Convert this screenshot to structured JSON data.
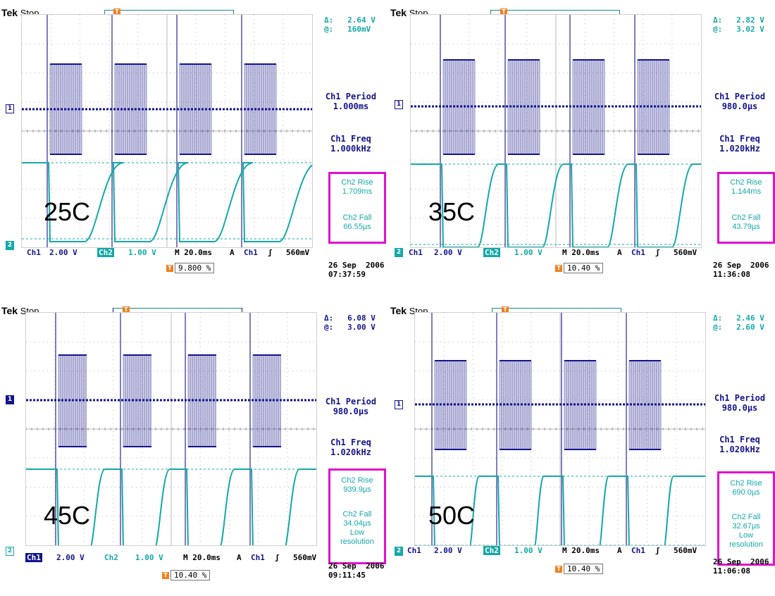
{
  "brand": "Tek",
  "acq_state": "Stop",
  "trigger_marker": "T",
  "colors": {
    "ch1": "#14148c",
    "ch2": "#15a8a8",
    "highlight": "#e010d0",
    "trigger": "#f08020"
  },
  "panels": [
    {
      "temp_label": "25C",
      "cursor_delta_label": "Δ:",
      "cursor_delta": "2.64 V",
      "cursor_at_label": "@:",
      "cursor_at": "160mV",
      "ch1_period_label": "Ch1 Period",
      "ch1_period": "1.000ms",
      "ch1_freq_label": "Ch1 Freq",
      "ch1_freq": "1.000kHz",
      "ch2_rise_label": "Ch2 Rise",
      "ch2_rise": "1.709ms",
      "ch2_fall_label": "Ch2 Fall",
      "ch2_fall": "66.55µs",
      "ch2_note_1": "",
      "ch2_note_2": "",
      "ch1_label": "Ch1",
      "ch1_scale": "2.00 V",
      "ch2_label": "Ch2",
      "ch2_scale": "1.00 V",
      "timebase": "M 20.0ms",
      "trig_mode": "A",
      "trig_src": "Ch1",
      "trig_slope": "ʃ",
      "trig_level": "560mV",
      "trig_pos": "9.800 %",
      "date": "26 Sep  2006",
      "time": "07:37:59",
      "ch1_marker": "1",
      "ch2_marker": "2"
    },
    {
      "temp_label": "35C",
      "cursor_delta_label": "Δ:",
      "cursor_delta": "2.82 V",
      "cursor_at_label": "@:",
      "cursor_at": "3.02 V",
      "ch1_period_label": "Ch1 Period",
      "ch1_period": "980.0µs",
      "ch1_freq_label": "Ch1 Freq",
      "ch1_freq": "1.020kHz",
      "ch2_rise_label": "Ch2 Rise",
      "ch2_rise": "1.144ms",
      "ch2_fall_label": "Ch2 Fall",
      "ch2_fall": "43.79µs",
      "ch2_note_1": "",
      "ch2_note_2": "",
      "ch1_label": "Ch1",
      "ch1_scale": "2.00 V",
      "ch2_label": "Ch2",
      "ch2_scale": "1.00 V",
      "timebase": "M 20.0ms",
      "trig_mode": "A",
      "trig_src": "Ch1",
      "trig_slope": "ʃ",
      "trig_level": "560mV",
      "trig_pos": "10.40 %",
      "date": "26 Sep  2006",
      "time": "11:36:08",
      "ch1_marker": "1",
      "ch2_marker": "2"
    },
    {
      "temp_label": "45C",
      "cursor_delta_label": "Δ:",
      "cursor_delta": "6.08 V",
      "cursor_at_label": "@:",
      "cursor_at": "3.00 V",
      "ch1_period_label": "Ch1 Period",
      "ch1_period": "980.0µs",
      "ch1_freq_label": "Ch1 Freq",
      "ch1_freq": "1.020kHz",
      "ch2_rise_label": "Ch2 Rise",
      "ch2_rise": "939.9µs",
      "ch2_fall_label": "Ch2 Fall",
      "ch2_fall": "34.04µs",
      "ch2_note_1": "Low",
      "ch2_note_2": "resolution",
      "ch1_label": "Ch1",
      "ch1_scale": "2.00 V",
      "ch2_label": "Ch2",
      "ch2_scale": "1.00 V",
      "timebase": "M 20.0ms",
      "trig_mode": "A",
      "trig_src": "Ch1",
      "trig_slope": "ʃ",
      "trig_level": "560mV",
      "trig_pos": "10.40 %",
      "date": "26 Sep  2006",
      "time": "09:11:45",
      "ch1_marker": "1",
      "ch2_marker": "2"
    },
    {
      "temp_label": "50C",
      "cursor_delta_label": "Δ:",
      "cursor_delta": "2.46 V",
      "cursor_at_label": "@:",
      "cursor_at": "2.60 V",
      "ch1_period_label": "Ch1 Period",
      "ch1_period": "980.0µs",
      "ch1_freq_label": "Ch1 Freq",
      "ch1_freq": "1.020kHz",
      "ch2_rise_label": "Ch2 Rise",
      "ch2_rise": "690.0µs",
      "ch2_fall_label": "Ch2 Fall",
      "ch2_fall": "32.67µs",
      "ch2_note_1": "Low",
      "ch2_note_2": "resolution",
      "ch1_label": "Ch1",
      "ch1_scale": "2.00 V",
      "ch2_label": "Ch2",
      "ch2_scale": "1.00 V",
      "timebase": "M 20.0ms",
      "trig_mode": "A",
      "trig_src": "Ch1",
      "trig_slope": "ʃ",
      "trig_level": "560mV",
      "trig_pos": "10.40 %",
      "date": "26 Sep  2006",
      "time": "11:06:08",
      "ch1_marker": "1",
      "ch2_marker": "2"
    }
  ]
}
